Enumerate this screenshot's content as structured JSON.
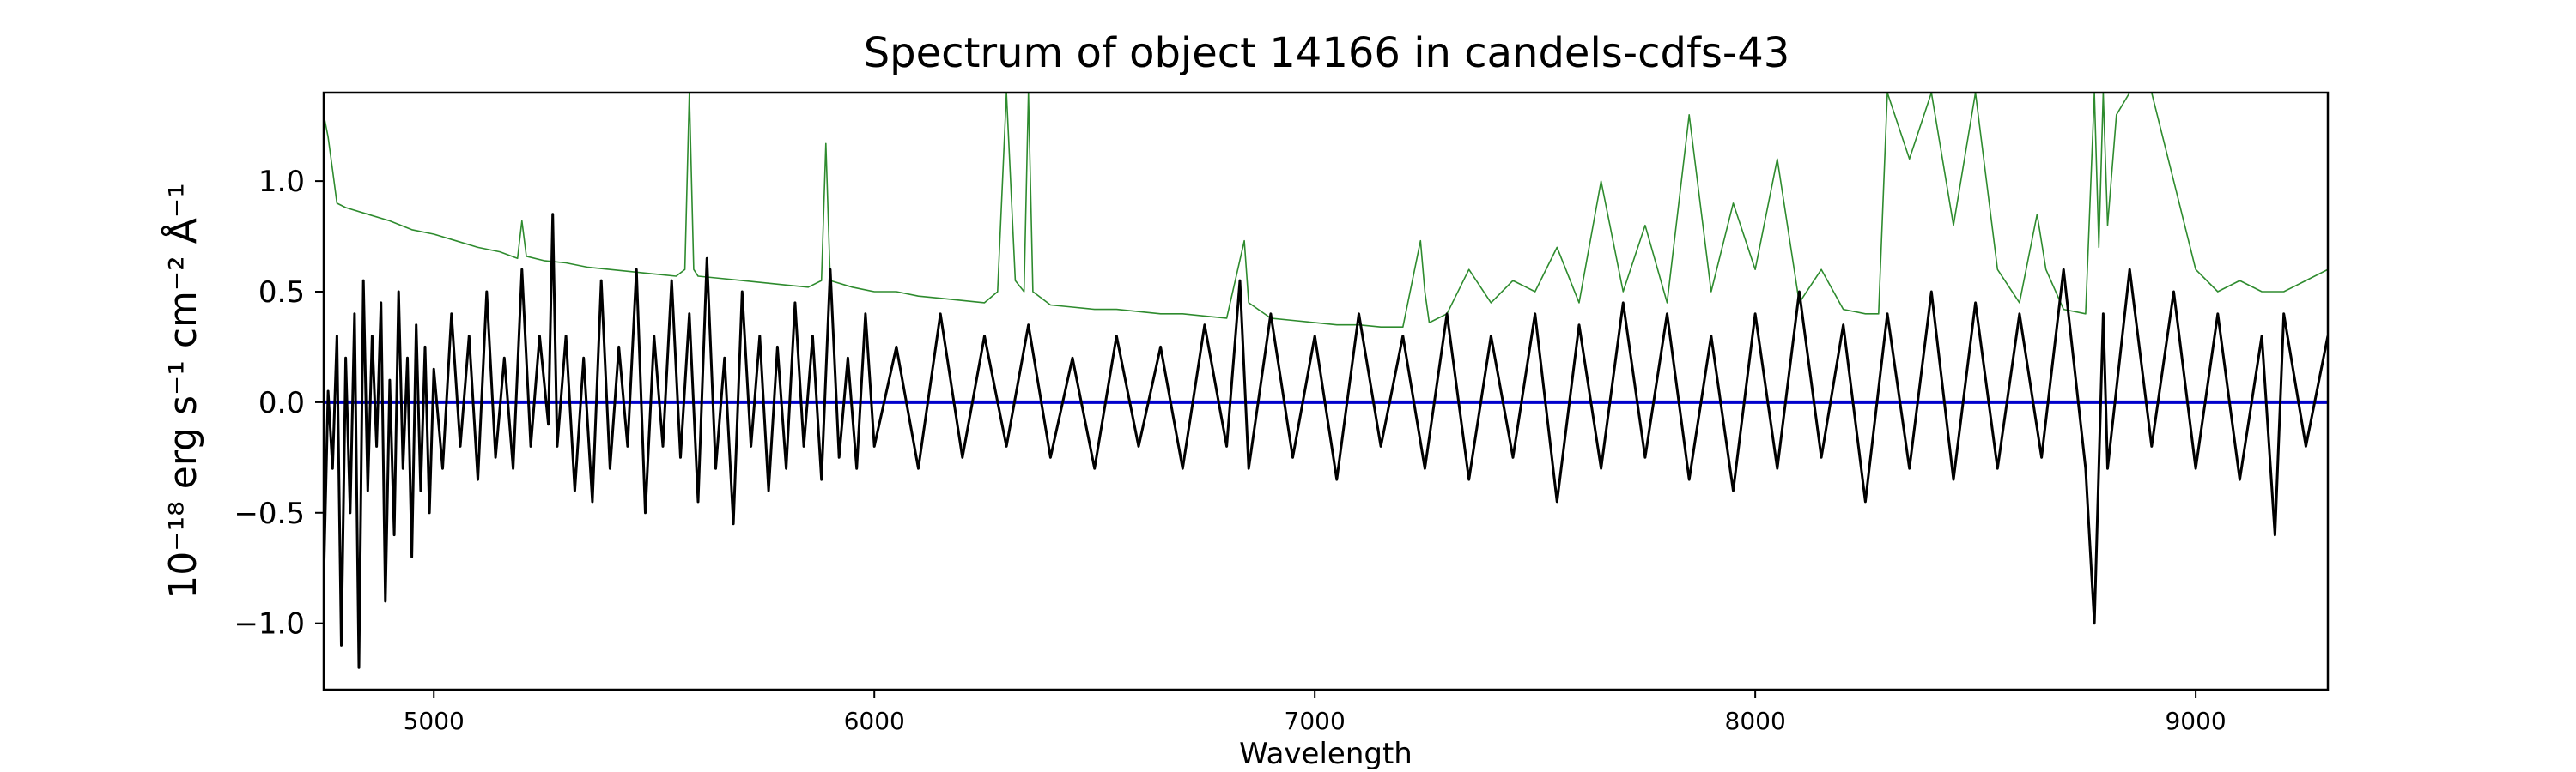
{
  "chart_data": {
    "type": "line",
    "title": "Spectrum of object 14166 in candels-cdfs-43",
    "xlabel": "Wavelength",
    "ylabel": "10⁻¹⁸ erg s⁻¹ cm⁻² Å⁻¹",
    "xlim": [
      4750,
      9300
    ],
    "ylim": [
      -1.3,
      1.4
    ],
    "x_ticks": [
      5000,
      6000,
      7000,
      8000,
      9000
    ],
    "y_ticks": [
      -1.0,
      -0.5,
      0.0,
      0.5,
      1.0
    ],
    "x_tick_labels": [
      "5000",
      "6000",
      "7000",
      "8000",
      "9000"
    ],
    "y_tick_labels": [
      "−1.0",
      "−0.5",
      "0.0",
      "0.5",
      "1.0"
    ],
    "grid": false,
    "legend": "none",
    "colors": {
      "flux": "#000000",
      "noise": "#2e8b2e",
      "model": "#0000cc"
    },
    "series": [
      {
        "role": "flux",
        "x": [
          4750,
          4760,
          4770,
          4780,
          4790,
          4800,
          4810,
          4820,
          4830,
          4840,
          4850,
          4860,
          4870,
          4880,
          4890,
          4900,
          4910,
          4920,
          4930,
          4940,
          4950,
          4960,
          4970,
          4980,
          4990,
          5000,
          5020,
          5040,
          5060,
          5080,
          5100,
          5120,
          5140,
          5160,
          5180,
          5200,
          5220,
          5240,
          5260,
          5270,
          5280,
          5300,
          5320,
          5340,
          5360,
          5380,
          5400,
          5420,
          5440,
          5460,
          5480,
          5500,
          5520,
          5540,
          5560,
          5580,
          5600,
          5620,
          5640,
          5660,
          5680,
          5700,
          5720,
          5740,
          5760,
          5780,
          5800,
          5820,
          5840,
          5860,
          5880,
          5900,
          5920,
          5940,
          5960,
          5980,
          6000,
          6050,
          6100,
          6150,
          6200,
          6250,
          6300,
          6350,
          6400,
          6450,
          6500,
          6550,
          6600,
          6650,
          6700,
          6750,
          6800,
          6830,
          6850,
          6900,
          6950,
          7000,
          7050,
          7100,
          7150,
          7200,
          7250,
          7300,
          7350,
          7400,
          7450,
          7500,
          7550,
          7600,
          7650,
          7700,
          7750,
          7800,
          7850,
          7900,
          7950,
          8000,
          8050,
          8100,
          8150,
          8200,
          8250,
          8300,
          8350,
          8400,
          8450,
          8500,
          8550,
          8600,
          8650,
          8700,
          8750,
          8770,
          8790,
          8800,
          8850,
          8900,
          8950,
          9000,
          9050,
          9100,
          9150,
          9180,
          9200,
          9250,
          9300
        ],
        "y": [
          -0.8,
          0.05,
          -0.3,
          0.3,
          -1.1,
          0.2,
          -0.5,
          0.4,
          -1.2,
          0.55,
          -0.4,
          0.3,
          -0.2,
          0.45,
          -0.9,
          0.1,
          -0.6,
          0.5,
          -0.3,
          0.2,
          -0.7,
          0.35,
          -0.4,
          0.25,
          -0.5,
          0.15,
          -0.3,
          0.4,
          -0.2,
          0.3,
          -0.35,
          0.5,
          -0.25,
          0.2,
          -0.3,
          0.6,
          -0.2,
          0.3,
          -0.1,
          0.85,
          -0.2,
          0.3,
          -0.4,
          0.2,
          -0.45,
          0.55,
          -0.3,
          0.25,
          -0.2,
          0.6,
          -0.5,
          0.3,
          -0.2,
          0.55,
          -0.25,
          0.4,
          -0.45,
          0.65,
          -0.3,
          0.2,
          -0.55,
          0.5,
          -0.2,
          0.3,
          -0.4,
          0.25,
          -0.3,
          0.45,
          -0.2,
          0.3,
          -0.35,
          0.6,
          -0.25,
          0.2,
          -0.3,
          0.4,
          -0.2,
          0.25,
          -0.3,
          0.4,
          -0.25,
          0.3,
          -0.2,
          0.35,
          -0.25,
          0.2,
          -0.3,
          0.3,
          -0.2,
          0.25,
          -0.3,
          0.35,
          -0.2,
          0.55,
          -0.3,
          0.4,
          -0.25,
          0.3,
          -0.35,
          0.4,
          -0.2,
          0.3,
          -0.3,
          0.4,
          -0.35,
          0.3,
          -0.25,
          0.4,
          -0.45,
          0.35,
          -0.3,
          0.45,
          -0.25,
          0.4,
          -0.35,
          0.3,
          -0.4,
          0.4,
          -0.3,
          0.5,
          -0.25,
          0.35,
          -0.45,
          0.4,
          -0.3,
          0.5,
          -0.35,
          0.45,
          -0.3,
          0.4,
          -0.25,
          0.6,
          -0.3,
          -1.0,
          0.4,
          -0.3,
          0.6,
          -0.2,
          0.5,
          -0.3,
          0.4,
          -0.35,
          0.3,
          -0.6,
          0.4,
          -0.2,
          0.3
        ]
      },
      {
        "role": "noise",
        "x": [
          4750,
          4760,
          4770,
          4780,
          4800,
          4850,
          4900,
          4950,
          5000,
          5050,
          5100,
          5150,
          5190,
          5200,
          5210,
          5250,
          5300,
          5350,
          5400,
          5450,
          5500,
          5550,
          5570,
          5580,
          5590,
          5600,
          5650,
          5700,
          5750,
          5800,
          5850,
          5880,
          5890,
          5900,
          5950,
          6000,
          6050,
          6100,
          6150,
          6200,
          6250,
          6280,
          6300,
          6320,
          6340,
          6350,
          6360,
          6400,
          6450,
          6500,
          6550,
          6600,
          6650,
          6700,
          6750,
          6800,
          6840,
          6850,
          6900,
          6950,
          7000,
          7050,
          7100,
          7150,
          7200,
          7240,
          7250,
          7260,
          7300,
          7350,
          7400,
          7450,
          7500,
          7550,
          7600,
          7650,
          7700,
          7750,
          7800,
          7850,
          7900,
          7950,
          8000,
          8050,
          8100,
          8150,
          8200,
          8250,
          8280,
          8300,
          8350,
          8400,
          8450,
          8500,
          8550,
          8600,
          8640,
          8660,
          8700,
          8750,
          8770,
          8780,
          8790,
          8800,
          8820,
          8850,
          8900,
          8950,
          9000,
          9050,
          9100,
          9150,
          9200,
          9250,
          9300
        ],
        "y": [
          1.3,
          1.2,
          1.05,
          0.9,
          0.88,
          0.85,
          0.82,
          0.78,
          0.76,
          0.73,
          0.7,
          0.68,
          0.65,
          0.82,
          0.66,
          0.64,
          0.63,
          0.61,
          0.6,
          0.59,
          0.58,
          0.57,
          0.6,
          1.4,
          0.6,
          0.57,
          0.56,
          0.55,
          0.54,
          0.53,
          0.52,
          0.55,
          1.17,
          0.55,
          0.52,
          0.5,
          0.5,
          0.48,
          0.47,
          0.46,
          0.45,
          0.5,
          1.4,
          0.55,
          0.5,
          1.4,
          0.5,
          0.44,
          0.43,
          0.42,
          0.42,
          0.41,
          0.4,
          0.4,
          0.39,
          0.38,
          0.73,
          0.45,
          0.38,
          0.37,
          0.36,
          0.35,
          0.35,
          0.34,
          0.34,
          0.73,
          0.5,
          0.36,
          0.4,
          0.6,
          0.45,
          0.55,
          0.5,
          0.7,
          0.45,
          1.0,
          0.5,
          0.8,
          0.45,
          1.3,
          0.5,
          0.9,
          0.6,
          1.1,
          0.45,
          0.6,
          0.42,
          0.4,
          0.4,
          1.4,
          1.1,
          1.4,
          0.8,
          1.4,
          0.6,
          0.45,
          0.85,
          0.6,
          0.42,
          0.4,
          1.4,
          0.7,
          1.4,
          0.8,
          1.3,
          1.4,
          1.4,
          1.0,
          0.6,
          0.5,
          0.55,
          0.5,
          0.5,
          0.55,
          0.6
        ]
      },
      {
        "role": "model",
        "x": [
          4750,
          9300
        ],
        "y": [
          0.0,
          0.0
        ]
      }
    ]
  }
}
